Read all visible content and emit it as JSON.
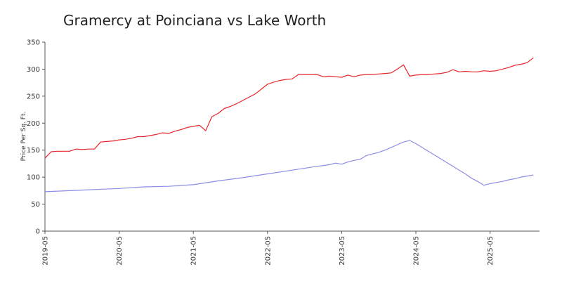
{
  "chart_data": {
    "type": "line",
    "title": "Gramercy at Poinciana vs Lake Worth",
    "xlabel": "",
    "ylabel": "Price Per Sq. Ft.",
    "ylim": [
      0,
      350
    ],
    "yticks": [
      0,
      50,
      100,
      150,
      200,
      250,
      300,
      350
    ],
    "xticks": [
      "2019-05",
      "2020-05",
      "2021-05",
      "2022-05",
      "2023-05",
      "2024-05",
      "2025-05"
    ],
    "grid": false,
    "legend": "none",
    "series": [
      {
        "color": "#e8262b",
        "points": [
          [
            "2019-05",
            135
          ],
          [
            "2019-06",
            147
          ],
          [
            "2019-07",
            148
          ],
          [
            "2019-08",
            148
          ],
          [
            "2019-09",
            148
          ],
          [
            "2019-10",
            152
          ],
          [
            "2019-11",
            151
          ],
          [
            "2019-12",
            152
          ],
          [
            "2020-01",
            152
          ],
          [
            "2020-02",
            165
          ],
          [
            "2020-03",
            166
          ],
          [
            "2020-04",
            167
          ],
          [
            "2020-05",
            169
          ],
          [
            "2020-06",
            170
          ],
          [
            "2020-07",
            172
          ],
          [
            "2020-08",
            175
          ],
          [
            "2020-09",
            175
          ],
          [
            "2020-10",
            177
          ],
          [
            "2020-11",
            179
          ],
          [
            "2020-12",
            182
          ],
          [
            "2021-01",
            181
          ],
          [
            "2021-02",
            185
          ],
          [
            "2021-03",
            188
          ],
          [
            "2021-04",
            192
          ],
          [
            "2021-05",
            194
          ],
          [
            "2021-06",
            196
          ],
          [
            "2021-07",
            186
          ],
          [
            "2021-08",
            212
          ],
          [
            "2021-09",
            218
          ],
          [
            "2021-10",
            227
          ],
          [
            "2021-11",
            231
          ],
          [
            "2021-12",
            236
          ],
          [
            "2022-01",
            242
          ],
          [
            "2022-02",
            248
          ],
          [
            "2022-03",
            254
          ],
          [
            "2022-04",
            263
          ],
          [
            "2022-05",
            272
          ],
          [
            "2022-06",
            276
          ],
          [
            "2022-07",
            279
          ],
          [
            "2022-08",
            281
          ],
          [
            "2022-09",
            282
          ],
          [
            "2022-10",
            290
          ],
          [
            "2022-11",
            290
          ],
          [
            "2022-12",
            290
          ],
          [
            "2023-01",
            290
          ],
          [
            "2023-02",
            286
          ],
          [
            "2023-03",
            287
          ],
          [
            "2023-04",
            286
          ],
          [
            "2023-05",
            285
          ],
          [
            "2023-06",
            289
          ],
          [
            "2023-07",
            286
          ],
          [
            "2023-08",
            289
          ],
          [
            "2023-09",
            290
          ],
          [
            "2023-10",
            290
          ],
          [
            "2023-11",
            291
          ],
          [
            "2023-12",
            292
          ],
          [
            "2024-01",
            293
          ],
          [
            "2024-02",
            300
          ],
          [
            "2024-03",
            308
          ],
          [
            "2024-04",
            287
          ],
          [
            "2024-05",
            289
          ],
          [
            "2024-06",
            290
          ],
          [
            "2024-07",
            290
          ],
          [
            "2024-08",
            291
          ],
          [
            "2024-09",
            292
          ],
          [
            "2024-10",
            294
          ],
          [
            "2024-11",
            299
          ],
          [
            "2024-12",
            295
          ],
          [
            "2025-01",
            296
          ],
          [
            "2025-02",
            295
          ],
          [
            "2025-03",
            295
          ],
          [
            "2025-04",
            297
          ],
          [
            "2025-05",
            296
          ],
          [
            "2025-06",
            297
          ],
          [
            "2025-07",
            300
          ],
          [
            "2025-08",
            303
          ],
          [
            "2025-09",
            307
          ],
          [
            "2025-10",
            309
          ],
          [
            "2025-11",
            312
          ],
          [
            "2025-12",
            321
          ]
        ]
      },
      {
        "color": "#8c8ce6",
        "points": [
          [
            "2019-05",
            73
          ],
          [
            "2019-09",
            75
          ],
          [
            "2020-01",
            77
          ],
          [
            "2020-05",
            79
          ],
          [
            "2020-09",
            82
          ],
          [
            "2021-01",
            83
          ],
          [
            "2021-05",
            86
          ],
          [
            "2021-09",
            93
          ],
          [
            "2022-01",
            99
          ],
          [
            "2022-05",
            106
          ],
          [
            "2022-09",
            113
          ],
          [
            "2023-01",
            120
          ],
          [
            "2023-03",
            123
          ],
          [
            "2023-04",
            126
          ],
          [
            "2023-05",
            124
          ],
          [
            "2023-06",
            128
          ],
          [
            "2023-07",
            131
          ],
          [
            "2023-08",
            133
          ],
          [
            "2023-09",
            140
          ],
          [
            "2023-10",
            143
          ],
          [
            "2023-11",
            146
          ],
          [
            "2023-12",
            150
          ],
          [
            "2024-01",
            155
          ],
          [
            "2024-02",
            160
          ],
          [
            "2024-03",
            165
          ],
          [
            "2024-04",
            168
          ],
          [
            "2024-05",
            162
          ],
          [
            "2024-06",
            155
          ],
          [
            "2024-07",
            148
          ],
          [
            "2024-08",
            141
          ],
          [
            "2024-09",
            134
          ],
          [
            "2024-10",
            127
          ],
          [
            "2024-11",
            120
          ],
          [
            "2024-12",
            113
          ],
          [
            "2025-01",
            106
          ],
          [
            "2025-02",
            98
          ],
          [
            "2025-03",
            92
          ],
          [
            "2025-04",
            85
          ],
          [
            "2025-05",
            88
          ],
          [
            "2025-06",
            90
          ],
          [
            "2025-07",
            92
          ],
          [
            "2025-08",
            95
          ],
          [
            "2025-09",
            97
          ],
          [
            "2025-10",
            100
          ],
          [
            "2025-11",
            102
          ],
          [
            "2025-12",
            104
          ]
        ]
      }
    ]
  }
}
